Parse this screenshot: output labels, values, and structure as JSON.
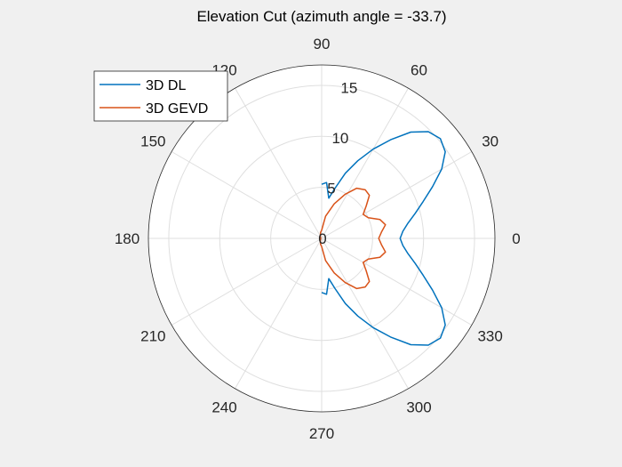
{
  "chart_data": {
    "type": "polar-line",
    "title": "Elevation Cut (azimuth angle = -33.7)",
    "theta_unit": "degrees",
    "theta_ticks": [
      0,
      30,
      60,
      90,
      120,
      150,
      180,
      210,
      240,
      270,
      300,
      330
    ],
    "theta_tick_labels": [
      "0",
      "30",
      "60",
      "90",
      "120",
      "150",
      "180",
      "210",
      "240",
      "270",
      "300",
      "330"
    ],
    "r_ticks": [
      0,
      5,
      10,
      15
    ],
    "r_tick_labels": [
      "0",
      "5",
      "10",
      "15"
    ],
    "rlim": [
      0,
      17
    ],
    "grid": true,
    "legend": {
      "location": "top-left",
      "entries": [
        "3D DL",
        "3D GEVD"
      ]
    },
    "series": [
      {
        "name": "3D DL",
        "color": "#0072BD",
        "theta": [
          -90,
          -85,
          -80,
          -75,
          -70,
          -65,
          -60,
          -55,
          -50,
          -45,
          -40,
          -35,
          -30,
          -25,
          -20,
          -15,
          -10,
          -5,
          0,
          5,
          10,
          15,
          20,
          25,
          30,
          35,
          40,
          45,
          50,
          55,
          60,
          65,
          70,
          75,
          80,
          85,
          90
        ],
        "r": [
          5.3,
          5.5,
          4.0,
          5.1,
          6.8,
          8.4,
          10.1,
          11.8,
          13.6,
          14.8,
          15.2,
          14.8,
          13.6,
          12.0,
          10.6,
          9.5,
          8.6,
          8.0,
          7.7,
          8.0,
          8.6,
          9.5,
          10.6,
          12.0,
          13.6,
          14.8,
          15.2,
          14.8,
          13.6,
          11.8,
          10.1,
          8.4,
          6.8,
          5.1,
          4.0,
          5.5,
          5.3
        ]
      },
      {
        "name": "3D GEVD",
        "color": "#D95319",
        "theta": [
          -90,
          -80,
          -70,
          -62,
          -55,
          -48,
          -42,
          -36,
          -30,
          -24,
          -18,
          -12,
          -6,
          0,
          6,
          12,
          18,
          24,
          30,
          36,
          42,
          48,
          55,
          62,
          70,
          80,
          90,
          100,
          115,
          130,
          150,
          170,
          180,
          190,
          210,
          230,
          245,
          260,
          270
        ],
        "r": [
          0.8,
          2.2,
          3.6,
          4.9,
          6.0,
          6.4,
          6.3,
          5.4,
          4.7,
          5.0,
          6.0,
          6.4,
          5.9,
          5.6,
          5.9,
          6.4,
          6.0,
          5.0,
          4.7,
          5.4,
          6.3,
          6.4,
          6.0,
          4.9,
          3.6,
          2.2,
          0.8,
          0.6,
          0.3,
          0.2,
          0.1,
          0.15,
          0.2,
          0.15,
          0.1,
          0.2,
          0.3,
          0.6,
          0.8
        ]
      }
    ]
  }
}
